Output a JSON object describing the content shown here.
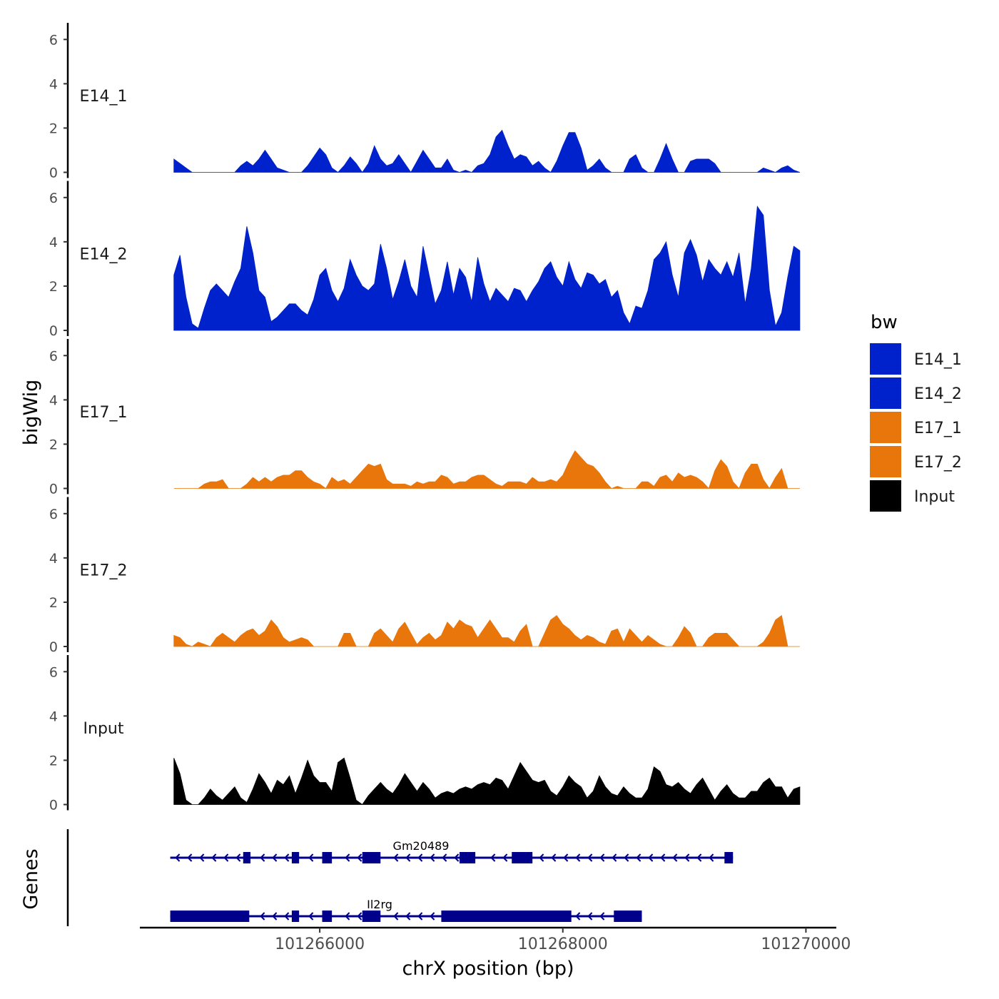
{
  "chart_data": {
    "type": "area",
    "ylabel": "bigWig",
    "xlabel": "chrX position (bp)",
    "ylim": [
      0,
      6.3
    ],
    "yticks": [
      0,
      2,
      4,
      6
    ],
    "xlim": [
      101264520,
      101270250
    ],
    "xticks": [
      101266000,
      101268000,
      101270000
    ],
    "x_tick_labels": [
      "101266000",
      "101268000",
      "101270000"
    ],
    "legend": {
      "title": "bw",
      "position": "right",
      "entries": [
        {
          "name": "E14_1",
          "color": "#0022CC"
        },
        {
          "name": "E14_2",
          "color": "#0022CC"
        },
        {
          "name": "E17_1",
          "color": "#E8760A"
        },
        {
          "name": "E17_2",
          "color": "#E8760A"
        },
        {
          "name": "Input",
          "color": "#000000"
        }
      ]
    },
    "x_start": 101264800,
    "x_step": 50,
    "series": [
      {
        "name": "E14_1",
        "color": "#0022CC",
        "values": [
          0.6,
          0.4,
          0.2,
          0,
          0,
          0,
          0,
          0,
          0,
          0,
          0,
          0.3,
          0.5,
          0.3,
          0.6,
          1.0,
          0.6,
          0.2,
          0.1,
          0,
          0,
          0,
          0.3,
          0.7,
          1.1,
          0.8,
          0.2,
          0,
          0.3,
          0.7,
          0.4,
          0,
          0.4,
          1.2,
          0.6,
          0.3,
          0.4,
          0.8,
          0.4,
          0,
          0.5,
          1.0,
          0.6,
          0.2,
          0.2,
          0.6,
          0.1,
          0,
          0.1,
          0,
          0.3,
          0.4,
          0.8,
          1.6,
          1.9,
          1.2,
          0.6,
          0.8,
          0.7,
          0.3,
          0.5,
          0.2,
          0,
          0.5,
          1.2,
          1.8,
          1.8,
          1.1,
          0.1,
          0.3,
          0.6,
          0.2,
          0,
          0,
          0,
          0.6,
          0.8,
          0.2,
          0,
          0,
          0.6,
          1.3,
          0.6,
          0,
          0,
          0.5,
          0.6,
          0.6,
          0.6,
          0.4,
          0,
          0,
          0,
          0,
          0,
          0,
          0,
          0.2,
          0.1,
          0,
          0.2,
          0.3,
          0.1,
          0
        ]
      },
      {
        "name": "E14_2",
        "color": "#0022CC",
        "values": [
          2.5,
          3.4,
          1.5,
          0.3,
          0.1,
          1.0,
          1.8,
          2.1,
          1.8,
          1.5,
          2.2,
          2.8,
          4.7,
          3.5,
          1.8,
          1.5,
          0.4,
          0.6,
          0.9,
          1.2,
          1.2,
          0.9,
          0.7,
          1.4,
          2.5,
          2.8,
          1.8,
          1.3,
          1.9,
          3.2,
          2.5,
          2.0,
          1.8,
          2.1,
          3.9,
          2.8,
          1.4,
          2.2,
          3.2,
          2.0,
          1.5,
          3.8,
          2.5,
          1.2,
          1.8,
          3.1,
          1.6,
          2.8,
          2.4,
          1.3,
          3.3,
          2.1,
          1.3,
          1.9,
          1.6,
          1.3,
          1.9,
          1.8,
          1.3,
          1.8,
          2.2,
          2.8,
          3.1,
          2.4,
          2.0,
          3.1,
          2.3,
          1.9,
          2.6,
          2.5,
          2.1,
          2.3,
          1.5,
          1.8,
          0.8,
          0.3,
          1.1,
          1.0,
          1.8,
          3.2,
          3.5,
          4.0,
          2.5,
          1.5,
          3.5,
          4.1,
          3.4,
          2.2,
          3.2,
          2.8,
          2.5,
          3.1,
          2.4,
          3.5,
          1.2,
          2.8,
          5.6,
          5.2,
          1.8,
          0.2,
          0.8,
          2.4,
          3.8,
          3.6
        ]
      },
      {
        "name": "E17_1",
        "color": "#E8760A",
        "values": [
          0,
          0,
          0,
          0,
          0,
          0.2,
          0.3,
          0.3,
          0.4,
          0,
          0,
          0,
          0.2,
          0.5,
          0.3,
          0.5,
          0.3,
          0.5,
          0.6,
          0.6,
          0.8,
          0.8,
          0.5,
          0.3,
          0.2,
          0,
          0.5,
          0.3,
          0.4,
          0.2,
          0.5,
          0.8,
          1.1,
          1.0,
          1.1,
          0.4,
          0.2,
          0.2,
          0.2,
          0.1,
          0.3,
          0.2,
          0.3,
          0.3,
          0.6,
          0.5,
          0.2,
          0.3,
          0.3,
          0.5,
          0.6,
          0.6,
          0.4,
          0.2,
          0.1,
          0.3,
          0.3,
          0.3,
          0.2,
          0.5,
          0.3,
          0.3,
          0.4,
          0.3,
          0.6,
          1.2,
          1.7,
          1.4,
          1.1,
          1.0,
          0.7,
          0.3,
          0,
          0.1,
          0,
          0,
          0,
          0.3,
          0.3,
          0.1,
          0.5,
          0.6,
          0.3,
          0.7,
          0.5,
          0.6,
          0.5,
          0.3,
          0,
          0.8,
          1.3,
          1.0,
          0.3,
          0,
          0.7,
          1.1,
          1.1,
          0.4,
          0,
          0.5,
          0.9,
          0,
          0,
          0
        ]
      },
      {
        "name": "E17_2",
        "color": "#E8760A",
        "values": [
          0.5,
          0.4,
          0.1,
          0,
          0.2,
          0.1,
          0,
          0.4,
          0.6,
          0.4,
          0.2,
          0.5,
          0.7,
          0.8,
          0.5,
          0.7,
          1.2,
          0.9,
          0.4,
          0.2,
          0.3,
          0.4,
          0.3,
          0,
          0,
          0,
          0,
          0,
          0.6,
          0.6,
          0,
          0,
          0,
          0.6,
          0.8,
          0.5,
          0.2,
          0.8,
          1.1,
          0.6,
          0.1,
          0.4,
          0.6,
          0.3,
          0.5,
          1.1,
          0.8,
          1.2,
          1.0,
          0.9,
          0.4,
          0.8,
          1.2,
          0.8,
          0.4,
          0.4,
          0.2,
          0.7,
          1.0,
          0,
          0,
          0.6,
          1.2,
          1.4,
          1.0,
          0.8,
          0.5,
          0.3,
          0.5,
          0.4,
          0.2,
          0.1,
          0.7,
          0.8,
          0.2,
          0.8,
          0.5,
          0.2,
          0.5,
          0.3,
          0.1,
          0,
          0,
          0.4,
          0.9,
          0.6,
          0,
          0,
          0.4,
          0.6,
          0.6,
          0.6,
          0.3,
          0,
          0,
          0,
          0,
          0.2,
          0.6,
          1.2,
          1.4,
          0,
          0,
          0
        ]
      },
      {
        "name": "Input",
        "color": "#000000",
        "values": [
          2.1,
          1.4,
          0.2,
          0,
          0,
          0.3,
          0.7,
          0.4,
          0.2,
          0.5,
          0.8,
          0.3,
          0.1,
          0.7,
          1.4,
          1.0,
          0.5,
          1.1,
          0.9,
          1.3,
          0.5,
          1.2,
          2.0,
          1.3,
          1.0,
          1.0,
          0.6,
          1.9,
          2.1,
          1.2,
          0.2,
          0,
          0.4,
          0.7,
          1.0,
          0.7,
          0.5,
          0.9,
          1.4,
          1.0,
          0.6,
          1.0,
          0.7,
          0.3,
          0.5,
          0.6,
          0.5,
          0.7,
          0.8,
          0.7,
          0.9,
          1.0,
          0.9,
          1.2,
          1.1,
          0.7,
          1.3,
          1.9,
          1.5,
          1.1,
          1.0,
          1.1,
          0.6,
          0.4,
          0.8,
          1.3,
          1.0,
          0.8,
          0.3,
          0.6,
          1.3,
          0.8,
          0.5,
          0.4,
          0.8,
          0.5,
          0.3,
          0.3,
          0.7,
          1.7,
          1.5,
          0.9,
          0.8,
          1.0,
          0.7,
          0.5,
          0.9,
          1.2,
          0.7,
          0.2,
          0.6,
          0.9,
          0.5,
          0.3,
          0.3,
          0.6,
          0.6,
          1.0,
          1.2,
          0.8,
          0.8,
          0.3,
          0.7,
          0.8
        ]
      }
    ],
    "genes_track": {
      "label": "Genes",
      "color": "#00008B",
      "genes": [
        {
          "name": "Gm20489",
          "start": 101264770,
          "end": 101269400,
          "exons": [
            [
              101265370,
              101265430
            ],
            [
              101265770,
              101265830
            ],
            [
              101266020,
              101266100
            ],
            [
              101266350,
              101266500
            ],
            [
              101267150,
              101267280
            ],
            [
              101267580,
              101267750
            ],
            [
              101269330,
              101269400
            ]
          ]
        },
        {
          "name": "Il2rg",
          "start": 101264770,
          "end": 101268650,
          "exons": [
            [
              101264770,
              101265420
            ],
            [
              101265770,
              101265830
            ],
            [
              101266020,
              101266100
            ],
            [
              101266350,
              101266500
            ],
            [
              101267000,
              101268070
            ],
            [
              101268420,
              101268650
            ]
          ]
        }
      ]
    }
  }
}
